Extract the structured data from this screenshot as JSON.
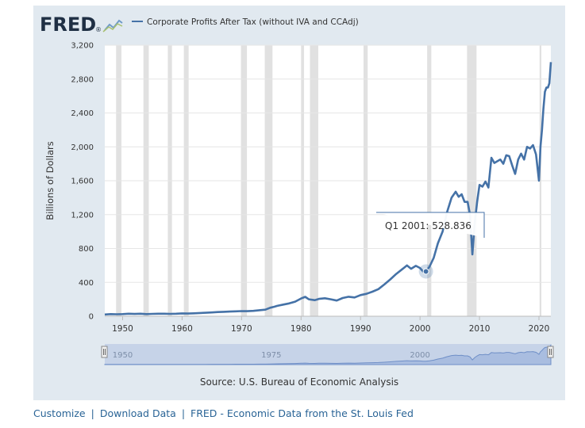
{
  "logo": {
    "text": "FRED",
    "mark": "®"
  },
  "chart_data": {
    "type": "line",
    "title": "",
    "legend": [
      {
        "label": "Corporate Profits After Tax (without IVA and CCAdj)",
        "color": "#4572a7"
      }
    ],
    "legend_placement": "top-left",
    "ylabel": "Billions of Dollars",
    "xlabel": "",
    "ylim": [
      0,
      3200
    ],
    "xlim": [
      1947.0,
      2022.0
    ],
    "yticks": [
      "0",
      "400",
      "800",
      "1,200",
      "1,600",
      "2,000",
      "2,400",
      "2,800",
      "3,200"
    ],
    "ytick_values": [
      0,
      400,
      800,
      1200,
      1600,
      2000,
      2400,
      2800,
      3200
    ],
    "xticks": [
      "1950",
      "1960",
      "1970",
      "1980",
      "1990",
      "2000",
      "2010",
      "2020"
    ],
    "xtick_values": [
      1950,
      1960,
      1970,
      1980,
      1990,
      2000,
      2010,
      2020
    ],
    "grid": true,
    "recessions": [
      [
        1948.9,
        1949.8
      ],
      [
        1953.5,
        1954.4
      ],
      [
        1957.6,
        1958.3
      ],
      [
        1960.3,
        1961.1
      ],
      [
        1969.9,
        1970.9
      ],
      [
        1973.9,
        1975.2
      ],
      [
        1980.0,
        1980.5
      ],
      [
        1981.5,
        1982.9
      ],
      [
        1990.5,
        1991.2
      ],
      [
        2001.2,
        2001.9
      ],
      [
        2007.9,
        2009.5
      ],
      [
        2020.1,
        2020.4
      ]
    ],
    "series": [
      {
        "name": "Corporate Profits After Tax (without IVA and CCAdj)",
        "color": "#4572a7",
        "x": [
          1947.0,
          1948.0,
          1949.0,
          1950.0,
          1951.0,
          1952.0,
          1953.0,
          1954.0,
          1955.0,
          1956.0,
          1957.0,
          1958.0,
          1959.0,
          1960.0,
          1961.0,
          1962.0,
          1963.0,
          1964.0,
          1965.0,
          1966.0,
          1967.0,
          1968.0,
          1969.0,
          1970.0,
          1971.0,
          1972.0,
          1973.0,
          1974.0,
          1974.8,
          1975.5,
          1976.0,
          1977.0,
          1978.0,
          1979.0,
          1980.0,
          1980.7,
          1981.3,
          1982.3,
          1983.0,
          1984.0,
          1985.0,
          1986.0,
          1987.0,
          1988.0,
          1989.0,
          1990.0,
          1991.0,
          1992.0,
          1993.0,
          1994.0,
          1995.0,
          1996.0,
          1997.0,
          1997.8,
          1998.5,
          1999.3,
          2000.0,
          2000.5,
          2001.0,
          2001.6,
          2002.3,
          2003.0,
          2003.8,
          2004.5,
          2005.3,
          2006.0,
          2006.5,
          2007.0,
          2007.5,
          2008.0,
          2008.4,
          2008.8,
          2009.2,
          2009.6,
          2010.0,
          2010.5,
          2011.0,
          2011.5,
          2012.0,
          2012.5,
          2013.0,
          2013.5,
          2014.0,
          2014.5,
          2015.0,
          2015.5,
          2016.0,
          2016.5,
          2017.0,
          2017.5,
          2018.0,
          2018.5,
          2019.0,
          2019.5,
          2020.0,
          2020.25,
          2020.5,
          2020.75,
          2021.0,
          2021.25,
          2021.5,
          2021.75,
          2022.0
        ],
        "values": [
          21,
          25,
          23,
          25,
          30,
          27,
          30,
          25,
          28,
          30,
          30,
          28,
          30,
          34,
          32,
          35,
          38,
          41,
          45,
          50,
          52,
          55,
          58,
          61,
          60,
          64,
          71,
          78,
          100,
          112,
          123,
          138,
          152,
          172,
          210,
          229,
          200,
          190,
          205,
          212,
          200,
          185,
          215,
          230,
          222,
          250,
          265,
          290,
          320,
          375,
          435,
          500,
          555,
          600,
          560,
          595,
          570,
          530,
          529,
          585,
          690,
          860,
          1000,
          1220,
          1400,
          1470,
          1410,
          1440,
          1350,
          1350,
          1200,
          730,
          1100,
          1350,
          1550,
          1530,
          1590,
          1520,
          1870,
          1810,
          1830,
          1850,
          1800,
          1900,
          1890,
          1780,
          1680,
          1850,
          1920,
          1850,
          2000,
          1980,
          2020,
          1910,
          1600,
          2000,
          2200,
          2450,
          2650,
          2700,
          2700,
          2750,
          3000
        ]
      }
    ],
    "tooltip": {
      "label": "Q1 2001: 528.836",
      "x": 2001.0,
      "value": 528.836
    },
    "navigator": {
      "labels": [
        "1950",
        "1975",
        "2000"
      ],
      "label_values": [
        1950,
        1975,
        2000
      ]
    },
    "source": "Source: U.S. Bureau of Economic Analysis"
  },
  "footer": {
    "links": [
      "Customize",
      "Download Data",
      "FRED - Economic Data from the St. Louis Fed"
    ],
    "separator": "|"
  }
}
